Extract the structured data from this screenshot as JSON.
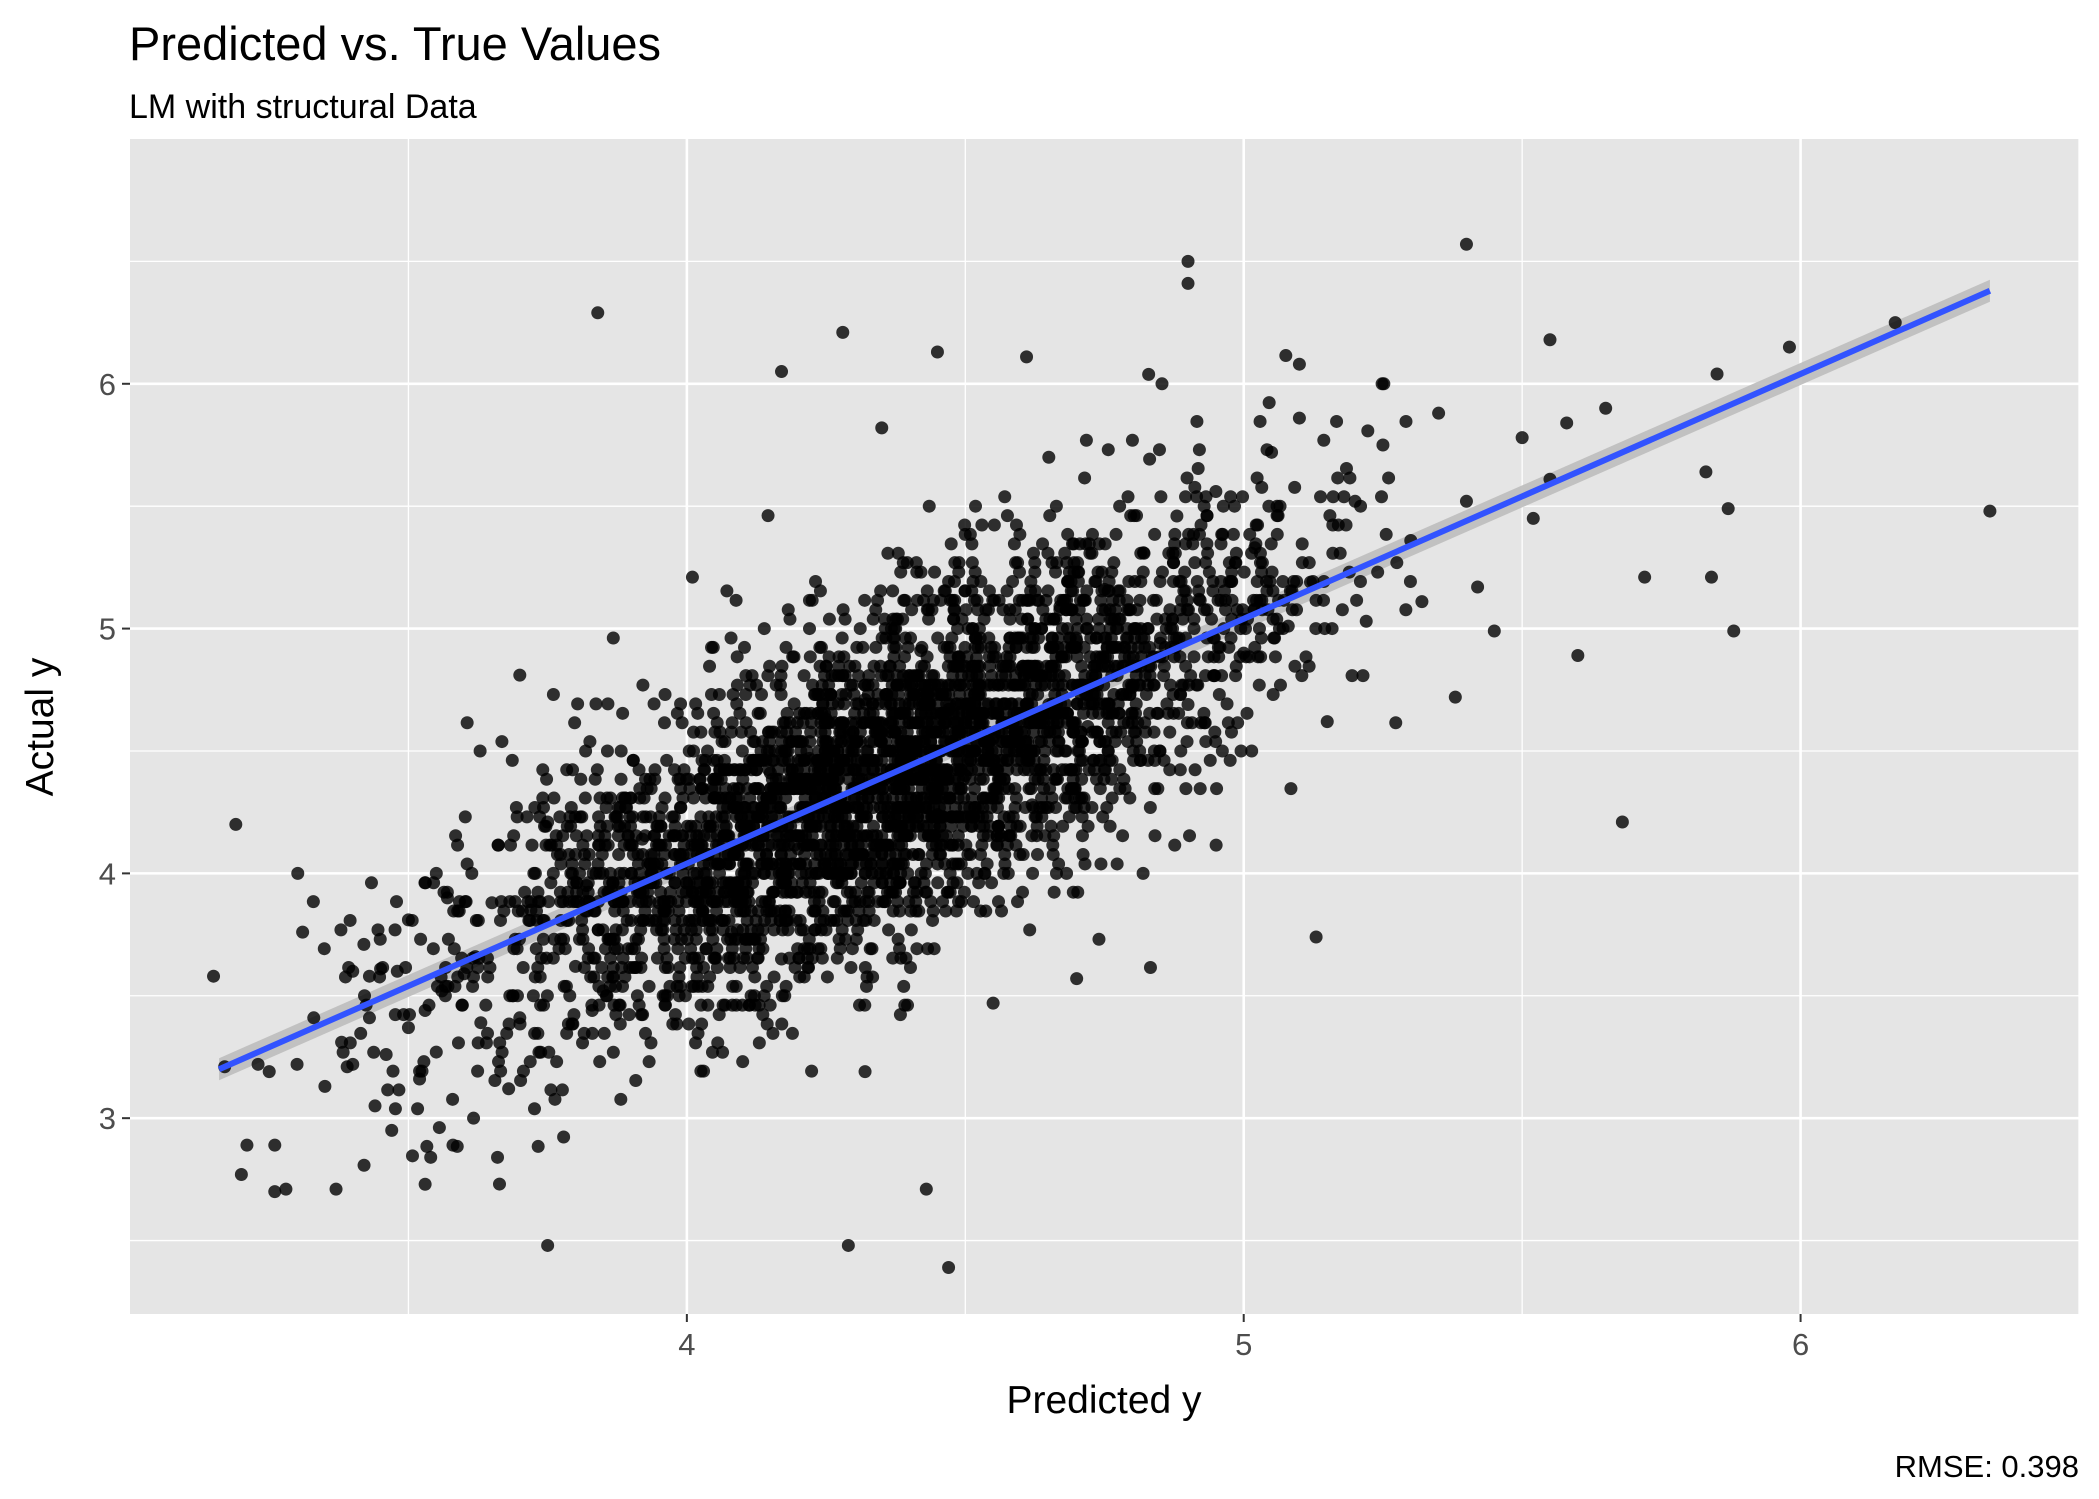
{
  "chart_data": {
    "type": "scatter",
    "title": "Predicted vs. True Values",
    "subtitle": "LM with structural Data",
    "xlabel": "Predicted y",
    "ylabel": "Actual y",
    "caption": "RMSE: 0.398",
    "xlim": [
      3.0,
      6.5
    ],
    "ylim": [
      2.2,
      7.0
    ],
    "x_ticks": [
      4,
      5,
      6
    ],
    "x_tick_labels": [
      "4",
      "5",
      "6"
    ],
    "y_ticks": [
      3,
      4,
      5,
      6
    ],
    "y_tick_labels": [
      "3",
      "4",
      "5",
      "6"
    ],
    "grid": true,
    "legend": "none",
    "colors": {
      "panel": "#e5e5e5",
      "grid": "#ffffff",
      "points": "#000000",
      "fit_line": "#3253ff",
      "confidence_band": "#bdbdbd"
    },
    "fit_line": {
      "x": [
        3.16,
        6.34
      ],
      "y": [
        3.2,
        6.38
      ]
    },
    "point_opacity": 0.8,
    "series": [
      {
        "x": [
          3.15,
          3.17,
          3.19,
          3.2,
          3.21,
          3.23,
          3.25,
          3.26,
          3.28,
          3.3,
          3.31,
          3.33,
          3.35,
          3.37,
          3.38,
          3.4,
          3.4,
          3.42,
          3.43,
          3.44,
          3.45,
          3.46,
          3.47,
          3.48,
          3.5,
          3.5,
          3.52,
          3.53,
          3.54,
          3.55,
          3.56,
          3.57,
          3.58,
          3.6,
          3.62,
          3.63,
          3.65,
          3.66,
          3.68,
          3.7,
          3.72,
          3.75,
          3.8,
          3.82,
          3.83,
          3.85,
          3.9,
          3.92,
          3.95,
          4.0,
          4.05,
          4.08,
          4.1,
          4.15,
          4.17,
          4.2,
          4.22,
          4.25,
          4.28,
          4.3,
          4.32,
          4.35,
          4.4,
          4.42,
          4.45,
          4.47,
          4.5,
          4.52,
          4.55,
          4.6,
          4.62,
          4.65,
          4.67,
          4.7,
          4.72,
          4.75,
          4.8,
          4.82,
          4.85,
          4.88,
          4.9,
          4.92,
          4.95,
          5.0,
          5.02,
          5.05,
          5.08,
          5.1,
          5.12,
          5.15,
          5.2,
          5.22,
          5.25,
          5.3,
          5.32,
          5.35,
          5.38,
          5.4,
          5.42,
          5.45,
          5.5,
          5.52,
          5.55,
          5.58,
          5.6,
          5.65,
          5.68,
          5.72,
          5.83,
          5.84,
          5.85,
          5.87,
          5.88,
          5.98,
          6.17,
          6.34,
          3.84,
          4.28,
          4.17,
          4.45,
          4.61,
          4.9,
          5.1,
          5.4,
          5.55,
          4.47,
          4.43,
          4.29,
          3.75,
          4.32,
          4.55,
          4.7,
          3.26,
          3.53,
          3.39,
          3.43,
          4.35,
          3.7,
          4.9,
          5.13,
          4.65,
          4.01
        ],
        "y": [
          3.58,
          3.21,
          4.2,
          2.77,
          2.89,
          3.22,
          3.19,
          2.89,
          2.71,
          3.22,
          3.76,
          3.41,
          3.13,
          2.71,
          3.31,
          3.6,
          3.22,
          3.71,
          3.41,
          3.05,
          3.61,
          3.26,
          2.95,
          3.6,
          3.37,
          3.81,
          3.16,
          3.44,
          2.84,
          3.27,
          3.52,
          3.9,
          2.89,
          3.59,
          3.66,
          3.39,
          3.88,
          2.84,
          3.12,
          3.41,
          3.85,
          4.21,
          3.62,
          3.95,
          3.44,
          3.52,
          4.0,
          4.14,
          3.88,
          3.96,
          4.31,
          3.76,
          4.12,
          4.41,
          3.65,
          4.1,
          4.47,
          4.63,
          3.99,
          4.35,
          4.71,
          4.08,
          4.52,
          4.91,
          4.24,
          4.67,
          4.4,
          4.88,
          4.55,
          4.83,
          4.28,
          4.69,
          5.09,
          4.95,
          4.6,
          5.16,
          4.76,
          5.31,
          4.94,
          5.46,
          4.69,
          5.12,
          5.56,
          4.9,
          5.33,
          5.72,
          5.01,
          5.86,
          5.19,
          4.62,
          5.52,
          5.03,
          5.75,
          5.36,
          5.11,
          5.88,
          4.72,
          5.52,
          5.17,
          4.99,
          5.78,
          5.45,
          5.61,
          5.84,
          4.89,
          5.9,
          4.21,
          5.21,
          5.64,
          5.21,
          6.04,
          5.49,
          4.99,
          6.15,
          6.25,
          5.48,
          6.29,
          6.21,
          6.05,
          6.13,
          6.11,
          6.41,
          6.08,
          6.57,
          6.18,
          2.39,
          2.71,
          2.48,
          2.48,
          3.19,
          3.47,
          3.57,
          2.7,
          2.73,
          3.21,
          3.58,
          5.82,
          4.81,
          6.5,
          3.74,
          5.7,
          5.21
        ]
      }
    ]
  }
}
